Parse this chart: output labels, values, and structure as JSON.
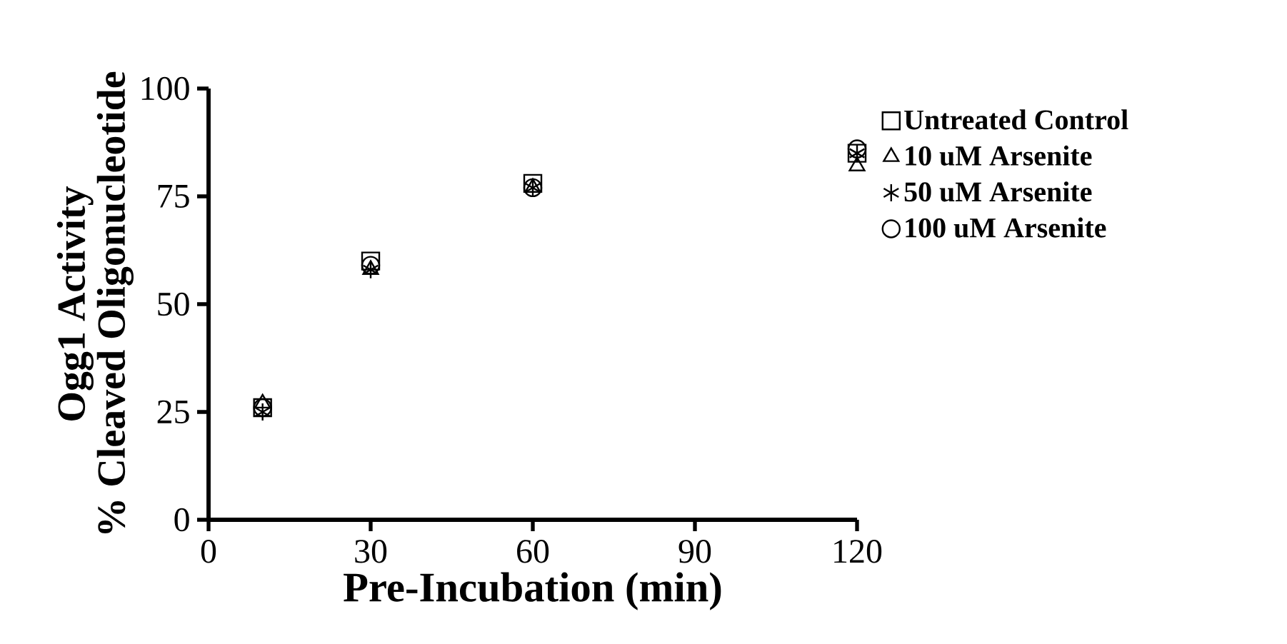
{
  "chart_data": {
    "type": "scatter",
    "xlabel": "Pre-Incubation (min)",
    "ylabel": "Ogg1 Activity % Cleaved Oligonucleotide",
    "x": [
      10,
      30,
      60,
      120
    ],
    "xlim": [
      0,
      120
    ],
    "xticks": [
      0,
      30,
      60,
      90,
      120
    ],
    "ylim": [
      0,
      100
    ],
    "yticks": [
      0,
      25,
      50,
      75,
      100
    ],
    "legend": "right",
    "grid": false,
    "series": [
      {
        "name": "Untreated Control",
        "color": "#000000",
        "marker": "square",
        "values": [
          26,
          60,
          78,
          85
        ]
      },
      {
        "name": "10 uM Arsenite",
        "color": "#000000",
        "marker": "triangle",
        "values": [
          27,
          58,
          77,
          82
        ]
      },
      {
        "name": "50 uM Arsenite",
        "color": "#000000",
        "marker": "cross",
        "values": [
          25,
          58,
          77,
          85
        ]
      },
      {
        "name": "100 uM Arsenite",
        "color": "#000000",
        "marker": "circle",
        "values": [
          26,
          59,
          77,
          86
        ]
      }
    ]
  }
}
